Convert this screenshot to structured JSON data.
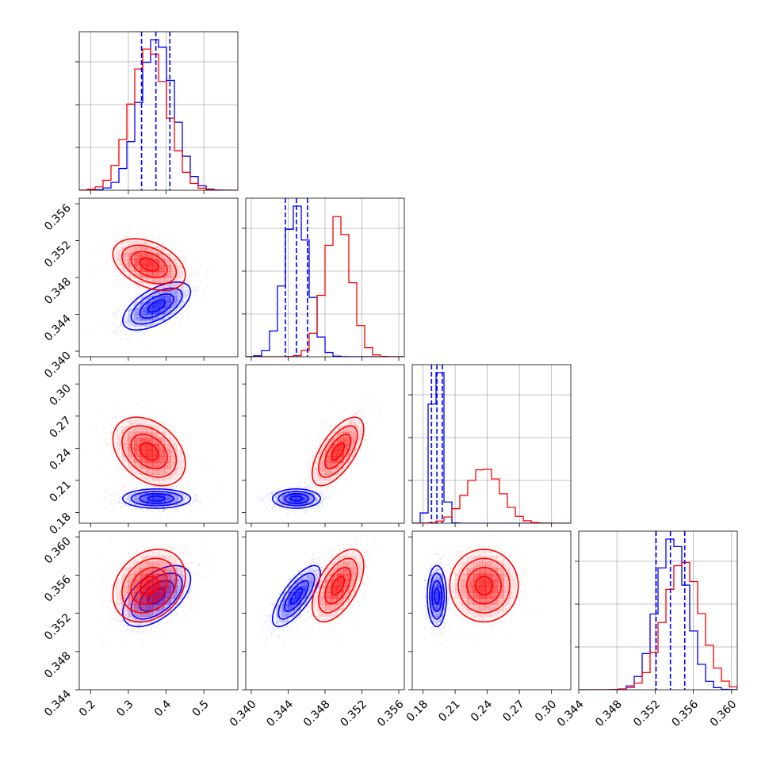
{
  "chart_data": {
    "type": "corner",
    "parameters": [
      {
        "range": [
          0.17,
          0.59
        ],
        "ticks": [
          "0.2",
          "0.3",
          "0.4",
          "0.5"
        ]
      },
      {
        "range": [
          0.3394,
          0.3566
        ],
        "ticks": [
          "0.340",
          "0.344",
          "0.348",
          "0.352",
          "0.356"
        ]
      },
      {
        "range": [
          0.17,
          0.318
        ],
        "ticks": [
          "0.18",
          "0.21",
          "0.24",
          "0.27",
          "0.30"
        ]
      },
      {
        "range": [
          0.344,
          0.3606
        ],
        "ticks": [
          "0.344",
          "0.348",
          "0.352",
          "0.356",
          "0.360"
        ]
      }
    ],
    "series": [
      {
        "color": "#0000ff",
        "mean": [
          0.375,
          0.3449,
          0.193,
          0.3538
        ],
        "std": [
          0.045,
          0.0013,
          0.0045,
          0.0016
        ],
        "corr": {
          "0-1": 0.6,
          "0-3": 0.55,
          "1-3": 0.75
        }
      },
      {
        "color": "#ff0000",
        "mean": [
          0.355,
          0.3494,
          0.237,
          0.3549
        ],
        "std": [
          0.048,
          0.0014,
          0.016,
          0.0019
        ],
        "corr": {
          "0-1": -0.4,
          "0-2": -0.35,
          "1-2": 0.65,
          "0-3": 0.25,
          "1-3": 0.55
        }
      }
    ],
    "quantile_lines": {
      "color": "#0000ff",
      "values": [
        [
          0.335,
          0.373,
          0.41
        ],
        [
          0.3437,
          0.3449,
          0.3461
        ],
        [
          0.188,
          0.193,
          0.198
        ],
        [
          0.3521,
          0.3536,
          0.3551
        ]
      ]
    }
  }
}
